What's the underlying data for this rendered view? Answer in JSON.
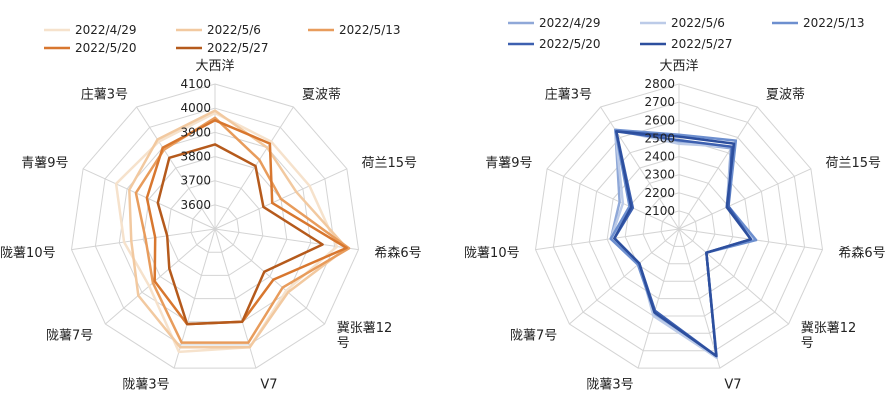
{
  "chart_data": [
    {
      "type": "radar",
      "categories": [
        "大西洋",
        "夏波蒂",
        "荷兰15号",
        "希森6号",
        "冀张薯12号",
        "V7",
        "陇薯3号",
        "陇薯7号",
        "陇薯10号",
        "青薯9号",
        "庄薯3号"
      ],
      "category_lines": [
        [
          "大西洋"
        ],
        [
          "夏波蒂"
        ],
        [
          "荷兰15号"
        ],
        [
          "希森6号"
        ],
        [
          "冀张薯12",
          "号"
        ],
        [
          "V7"
        ],
        [
          "陇薯3号"
        ],
        [
          "陇薯7号"
        ],
        [
          "陇薯10号"
        ],
        [
          "青薯9号"
        ],
        [
          "庄薯3号"
        ]
      ],
      "rlim": [
        3500,
        4100
      ],
      "ticks": [
        3600,
        3700,
        3800,
        3900,
        4000,
        4100
      ],
      "grid": true,
      "legend_position": "top",
      "series": [
        {
          "name": "2022/4/29",
          "color": "#f6e2cc",
          "values": [
            3980,
            3930,
            3930,
            4010,
            3890,
            4010,
            4030,
            3860,
            3880,
            3950,
            3930
          ]
        },
        {
          "name": "2022/5/6",
          "color": "#f2c9a0",
          "values": [
            3990,
            3900,
            3870,
            4050,
            3900,
            4010,
            4010,
            3920,
            3850,
            3890,
            3940
          ]
        },
        {
          "name": "2022/5/13",
          "color": "#e89c5c",
          "values": [
            3960,
            3840,
            3800,
            4060,
            3870,
            3990,
            3990,
            3840,
            3790,
            3860,
            3890
          ]
        },
        {
          "name": "2022/5/20",
          "color": "#d8772f",
          "values": [
            3950,
            3920,
            3760,
            4050,
            3820,
            3900,
            3910,
            3830,
            3750,
            3810,
            3900
          ]
        },
        {
          "name": "2022/5/27",
          "color": "#b55a1c",
          "values": [
            3850,
            3810,
            3720,
            3950,
            3770,
            3900,
            3910,
            3750,
            3700,
            3760,
            3850
          ]
        }
      ]
    },
    {
      "type": "radar",
      "categories": [
        "大西洋",
        "夏波蒂",
        "荷兰15号",
        "希森6号",
        "冀张薯12号",
        "V7",
        "陇薯3号",
        "陇薯7号",
        "陇薯10号",
        "青薯9号",
        "庄薯3号"
      ],
      "category_lines": [
        [
          "大西洋"
        ],
        [
          "夏波蒂"
        ],
        [
          "荷兰15号"
        ],
        [
          "希森6号"
        ],
        [
          "冀张薯12",
          "号"
        ],
        [
          "V7"
        ],
        [
          "陇薯3号"
        ],
        [
          "陇薯7号"
        ],
        [
          "陇薯10号"
        ],
        [
          "青薯9号"
        ],
        [
          "庄薯3号"
        ]
      ],
      "rlim": [
        2000,
        2800
      ],
      "ticks": [
        2100,
        2200,
        2300,
        2400,
        2500,
        2600,
        2700,
        2800
      ],
      "grid": true,
      "legend_position": "top",
      "series": [
        {
          "name": "2022/4/29",
          "color": "#8fa8d8",
          "values": [
            2480,
            2530,
            2290,
            2410,
            2200,
            2740,
            2490,
            2290,
            2380,
            2360,
            2650
          ]
        },
        {
          "name": "2022/5/6",
          "color": "#bccbe8",
          "values": [
            2470,
            2540,
            2290,
            2410,
            2200,
            2740,
            2500,
            2290,
            2380,
            2340,
            2650
          ]
        },
        {
          "name": "2022/5/13",
          "color": "#6d8fcf",
          "values": [
            2520,
            2580,
            2300,
            2430,
            2200,
            2730,
            2480,
            2300,
            2380,
            2300,
            2650
          ]
        },
        {
          "name": "2022/5/20",
          "color": "#3d60b0",
          "values": [
            2490,
            2540,
            2300,
            2400,
            2200,
            2730,
            2470,
            2290,
            2360,
            2280,
            2640
          ]
        },
        {
          "name": "2022/5/27",
          "color": "#2d4f9e",
          "values": [
            2510,
            2560,
            2290,
            2400,
            2200,
            2730,
            2480,
            2290,
            2360,
            2290,
            2640
          ]
        }
      ]
    }
  ]
}
